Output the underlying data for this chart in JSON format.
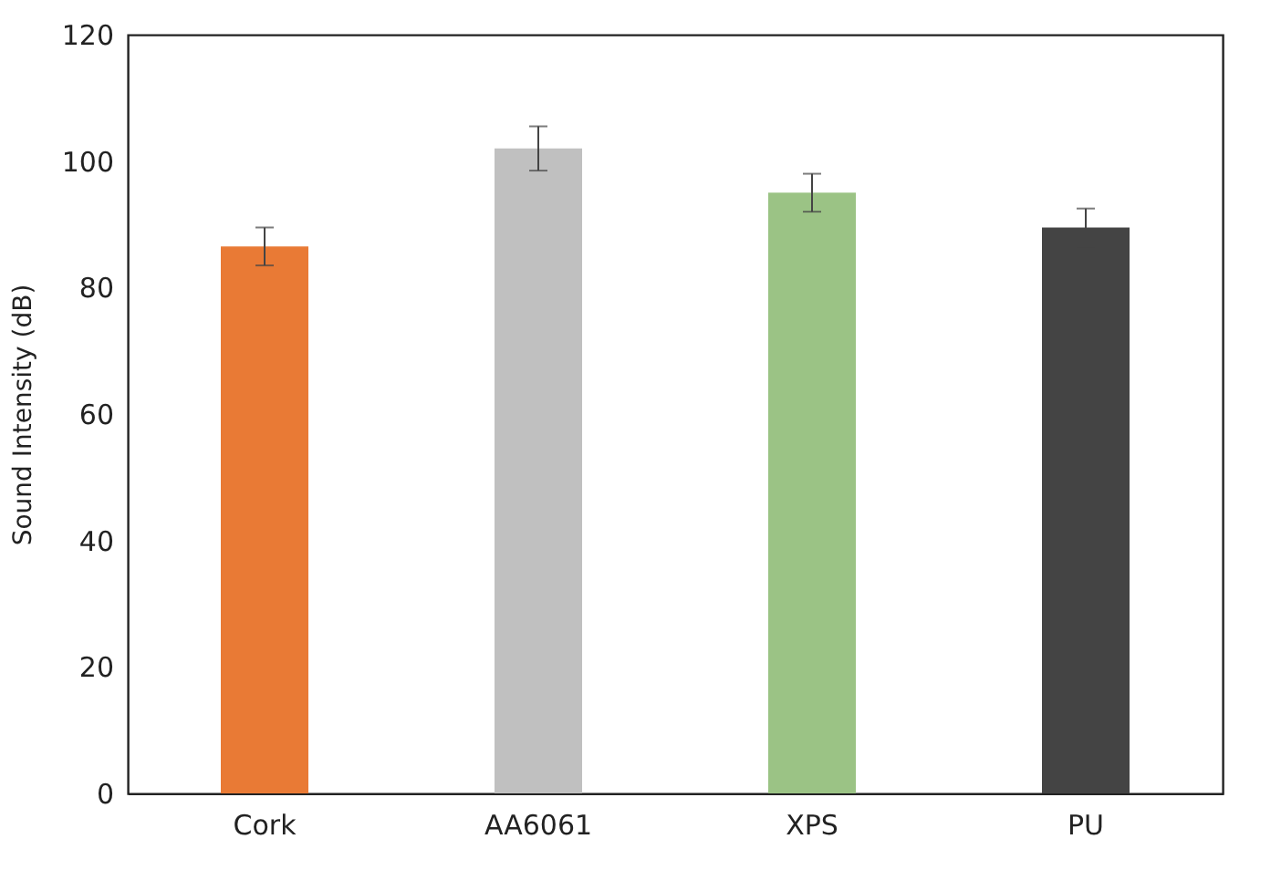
{
  "chart_data": {
    "type": "bar",
    "ylabel": "Sound Intensity (dB)",
    "categories": [
      "Cork",
      "AA6061",
      "XPS",
      "PU"
    ],
    "values": [
      86.5,
      102,
      95,
      89.5
    ],
    "colors": [
      "#e97a35",
      "#c0c0c0",
      "#9bc385",
      "#444444"
    ],
    "errors": [
      3,
      3.5,
      3,
      3
    ],
    "ylim": [
      0,
      120
    ],
    "yticks": [
      0,
      20,
      40,
      60,
      80,
      100,
      120
    ],
    "grid": false,
    "legend": false
  }
}
